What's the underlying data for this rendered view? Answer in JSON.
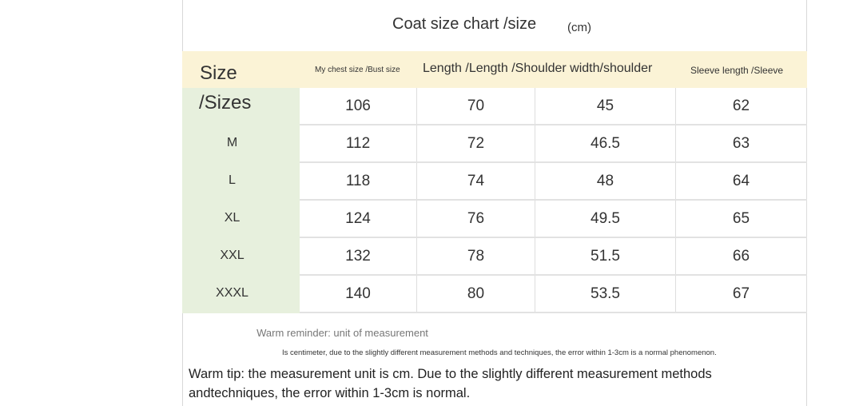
{
  "title": "Coat size chart /size",
  "unit": "(cm)",
  "headers": {
    "size_line1": "Size",
    "size_line2": "/Sizes",
    "chest": "My chest size /Bust size",
    "length_shoulder": "Length /Length /Shoulder width/shoulder",
    "sleeve": "Sleeve length /Sleeve"
  },
  "rows": [
    {
      "size": "",
      "chest": "106",
      "length": "70",
      "shoulder": "45",
      "sleeve": "62"
    },
    {
      "size": "M",
      "chest": "112",
      "length": "72",
      "shoulder": "46.5",
      "sleeve": "63"
    },
    {
      "size": "L",
      "chest": "118",
      "length": "74",
      "shoulder": "48",
      "sleeve": "64"
    },
    {
      "size": "XL",
      "chest": "124",
      "length": "76",
      "shoulder": "49.5",
      "sleeve": "65"
    },
    {
      "size": "XXL",
      "chest": "132",
      "length": "78",
      "shoulder": "51.5",
      "sleeve": "66"
    },
    {
      "size": "XXXL",
      "chest": "140",
      "length": "80",
      "shoulder": "53.5",
      "sleeve": "67"
    }
  ],
  "notes": {
    "reminder": "Warm reminder: unit of measurement",
    "detail": "Is centimeter, due to the slightly different measurement methods and techniques, the error within 1-3cm is a normal phenomenon.",
    "tip_line1": "Warm tip:  the measurement unit is cm. Due to the slightly different measurement methods",
    "tip_line2": "andtechniques,  the error within 1-3cm is normal."
  },
  "colors": {
    "header_bg": "#fbf3d6",
    "size_column_bg": "#e7f0dd"
  }
}
